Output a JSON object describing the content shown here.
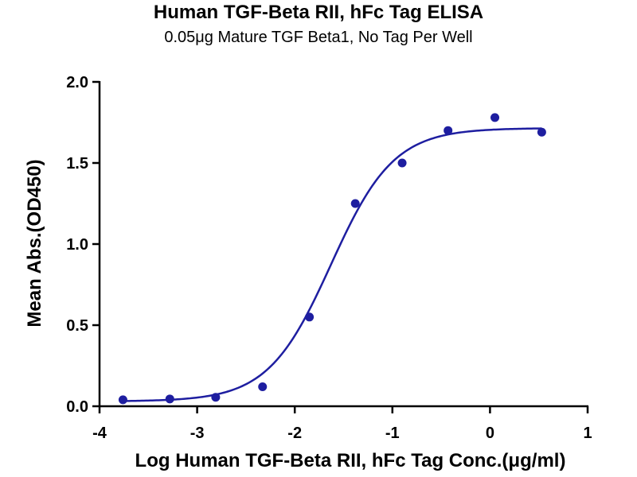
{
  "chart_data": {
    "type": "scatter",
    "title": "Human TGF-Beta RII, hFc Tag ELISA",
    "subtitle": "0.05μg Mature TGF Beta1, No Tag Per Well",
    "xlabel": "Log Human TGF-Beta RII, hFc Tag Conc.(μg/ml)",
    "ylabel": "Mean Abs.(OD450)",
    "xlim": [
      -4,
      1
    ],
    "ylim": [
      0,
      2.0
    ],
    "xticks": [
      "-4",
      "-3",
      "-2",
      "-1",
      "0",
      "1"
    ],
    "yticks": [
      "0.0",
      "0.5",
      "1.0",
      "1.5",
      "2.0"
    ],
    "series": [
      {
        "x": [
          -3.76,
          -3.28,
          -2.81,
          -2.33,
          -1.85,
          -1.38,
          -0.9,
          -0.43,
          0.05,
          0.53
        ],
        "y": [
          0.04,
          0.045,
          0.055,
          0.12,
          0.55,
          1.25,
          1.5,
          1.7,
          1.78,
          1.69
        ],
        "fit": {
          "bottom": 0.03,
          "top": 1.715,
          "logEC50": -1.63,
          "hill": 1.35
        }
      }
    ],
    "color": "#1e1ea0",
    "grid": false,
    "legend": "none"
  }
}
